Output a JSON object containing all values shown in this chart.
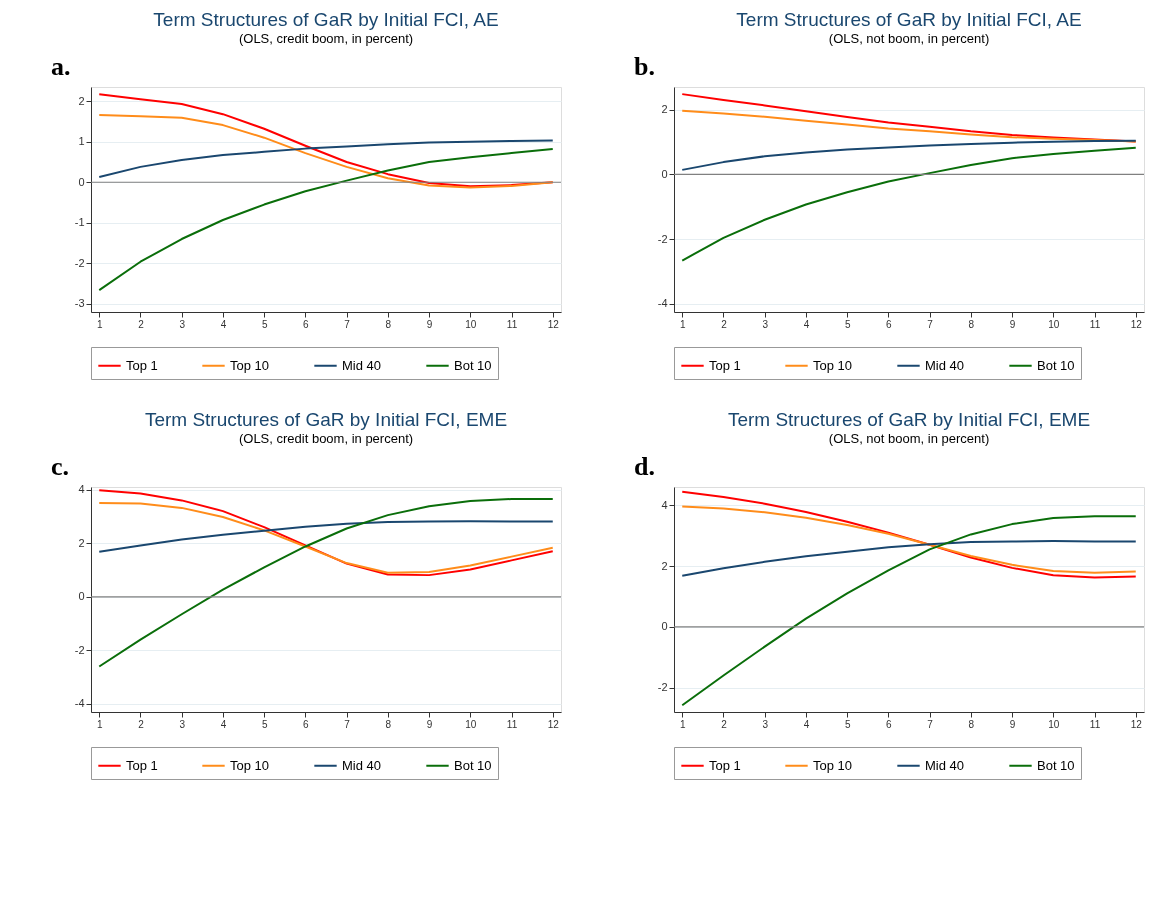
{
  "chart_data": [
    {
      "type": "line",
      "title": "Term Structures of GaR by Initial FCI, AE",
      "subtitle": "(OLS, credit boom, in percent)",
      "annotations": [
        "a."
      ],
      "x": [
        1,
        2,
        3,
        4,
        5,
        6,
        7,
        8,
        9,
        10,
        11,
        12
      ],
      "xlim": [
        0.8,
        12.2
      ],
      "xticks": [
        1,
        2,
        3,
        4,
        5,
        6,
        7,
        8,
        9,
        10,
        11,
        12
      ],
      "ylim": [
        -3.2,
        2.35
      ],
      "yticks": [
        -3,
        -2,
        -1,
        0,
        1,
        2
      ],
      "grid": "y",
      "legend": "bottom",
      "line_style": "solid",
      "ref_lines": [
        {
          "axis": "y",
          "value": 0,
          "color": "#808080"
        }
      ],
      "series": [
        {
          "name": "Top 1",
          "color": "#ff0000",
          "values": [
            2.17,
            2.05,
            1.93,
            1.68,
            1.32,
            0.9,
            0.5,
            0.2,
            -0.02,
            -0.1,
            -0.07,
            0.0
          ]
        },
        {
          "name": "Top 10",
          "color": "#ff8c1a",
          "values": [
            1.66,
            1.63,
            1.59,
            1.41,
            1.1,
            0.72,
            0.38,
            0.1,
            -0.08,
            -0.13,
            -0.09,
            0.0
          ]
        },
        {
          "name": "Mid 40",
          "color": "#1a476f",
          "values": [
            0.13,
            0.38,
            0.55,
            0.67,
            0.75,
            0.83,
            0.88,
            0.94,
            0.98,
            1.0,
            1.02,
            1.03
          ]
        },
        {
          "name": "Bot 10",
          "color": "#0a6e0a",
          "values": [
            -2.66,
            -1.96,
            -1.4,
            -0.93,
            -0.55,
            -0.22,
            0.04,
            0.29,
            0.5,
            0.62,
            0.72,
            0.82
          ]
        }
      ]
    },
    {
      "type": "line",
      "title": "Term Structures of GaR by Initial FCI, AE",
      "subtitle": "(OLS, not boom, in percent)",
      "annotations": [
        "b."
      ],
      "x": [
        1,
        2,
        3,
        4,
        5,
        6,
        7,
        8,
        9,
        10,
        11,
        12
      ],
      "xlim": [
        0.8,
        12.2
      ],
      "xticks": [
        1,
        2,
        3,
        4,
        5,
        6,
        7,
        8,
        9,
        10,
        11,
        12
      ],
      "ylim": [
        -4.25,
        2.7
      ],
      "yticks": [
        -4,
        -2,
        0,
        2
      ],
      "grid": "y",
      "legend": "bottom",
      "line_style": "solid",
      "ref_lines": [
        {
          "axis": "y",
          "value": 0,
          "color": "#808080"
        }
      ],
      "series": [
        {
          "name": "Top 1",
          "color": "#ff0000",
          "values": [
            2.48,
            2.3,
            2.13,
            1.95,
            1.77,
            1.6,
            1.47,
            1.33,
            1.22,
            1.14,
            1.08,
            1.02
          ]
        },
        {
          "name": "Top 10",
          "color": "#ff8c1a",
          "values": [
            1.97,
            1.88,
            1.78,
            1.66,
            1.54,
            1.42,
            1.33,
            1.23,
            1.15,
            1.1,
            1.06,
            1.02
          ]
        },
        {
          "name": "Mid 40",
          "color": "#1a476f",
          "values": [
            0.14,
            0.38,
            0.56,
            0.68,
            0.77,
            0.83,
            0.89,
            0.94,
            0.98,
            1.01,
            1.03,
            1.04
          ]
        },
        {
          "name": "Bot 10",
          "color": "#0a6e0a",
          "values": [
            -2.66,
            -1.96,
            -1.4,
            -0.93,
            -0.55,
            -0.22,
            0.04,
            0.29,
            0.5,
            0.63,
            0.73,
            0.82
          ]
        }
      ]
    },
    {
      "type": "line",
      "title": "Term Structures of GaR by Initial FCI, EME",
      "subtitle": "(OLS, credit boom, in percent)",
      "annotations": [
        "c."
      ],
      "x": [
        1,
        2,
        3,
        4,
        5,
        6,
        7,
        8,
        9,
        10,
        11,
        12
      ],
      "xlim": [
        0.8,
        12.2
      ],
      "xticks": [
        1,
        2,
        3,
        4,
        5,
        6,
        7,
        8,
        9,
        10,
        11,
        12
      ],
      "ylim": [
        -4.3,
        4.1
      ],
      "yticks": [
        -4,
        -2,
        0,
        2,
        4
      ],
      "grid": "y",
      "legend": "bottom",
      "line_style": "solid",
      "ref_lines": [
        {
          "axis": "y",
          "value": 0,
          "color": "#808080"
        }
      ],
      "series": [
        {
          "name": "Top 1",
          "color": "#ff0000",
          "values": [
            3.98,
            3.86,
            3.6,
            3.2,
            2.6,
            1.92,
            1.24,
            0.83,
            0.81,
            1.02,
            1.36,
            1.7
          ]
        },
        {
          "name": "Top 10",
          "color": "#ff8c1a",
          "values": [
            3.5,
            3.48,
            3.32,
            2.98,
            2.48,
            1.88,
            1.26,
            0.9,
            0.93,
            1.17,
            1.5,
            1.83
          ]
        },
        {
          "name": "Mid 40",
          "color": "#1a476f",
          "values": [
            1.68,
            1.92,
            2.14,
            2.32,
            2.47,
            2.62,
            2.73,
            2.79,
            2.81,
            2.82,
            2.81,
            2.81
          ]
        },
        {
          "name": "Bot 10",
          "color": "#0a6e0a",
          "values": [
            -2.6,
            -1.6,
            -0.65,
            0.27,
            1.1,
            1.88,
            2.55,
            3.05,
            3.38,
            3.58,
            3.65,
            3.65
          ]
        }
      ]
    },
    {
      "type": "line",
      "title": "Term Structures of GaR by Initial FCI, EME",
      "subtitle": "(OLS, not boom, in percent)",
      "annotations": [
        "d."
      ],
      "x": [
        1,
        2,
        3,
        4,
        5,
        6,
        7,
        8,
        9,
        10,
        11,
        12
      ],
      "xlim": [
        0.8,
        12.2
      ],
      "xticks": [
        1,
        2,
        3,
        4,
        5,
        6,
        7,
        8,
        9,
        10,
        11,
        12
      ],
      "ylim": [
        -2.8,
        4.6
      ],
      "yticks": [
        -2,
        0,
        2,
        4
      ],
      "grid": "y",
      "legend": "bottom",
      "line_style": "solid",
      "ref_lines": [
        {
          "axis": "y",
          "value": 0,
          "color": "#808080"
        }
      ],
      "series": [
        {
          "name": "Top 1",
          "color": "#ff0000",
          "values": [
            4.44,
            4.27,
            4.05,
            3.78,
            3.46,
            3.1,
            2.7,
            2.28,
            1.94,
            1.7,
            1.62,
            1.66
          ]
        },
        {
          "name": "Top 10",
          "color": "#ff8c1a",
          "values": [
            3.96,
            3.89,
            3.77,
            3.59,
            3.35,
            3.06,
            2.7,
            2.33,
            2.04,
            1.84,
            1.78,
            1.82
          ]
        },
        {
          "name": "Mid 40",
          "color": "#1a476f",
          "values": [
            1.68,
            1.93,
            2.14,
            2.32,
            2.47,
            2.62,
            2.72,
            2.79,
            2.81,
            2.82,
            2.81,
            2.81
          ]
        },
        {
          "name": "Bot 10",
          "color": "#0a6e0a",
          "values": [
            -2.58,
            -1.6,
            -0.65,
            0.27,
            1.1,
            1.86,
            2.55,
            3.04,
            3.38,
            3.58,
            3.64,
            3.64
          ]
        }
      ]
    }
  ]
}
